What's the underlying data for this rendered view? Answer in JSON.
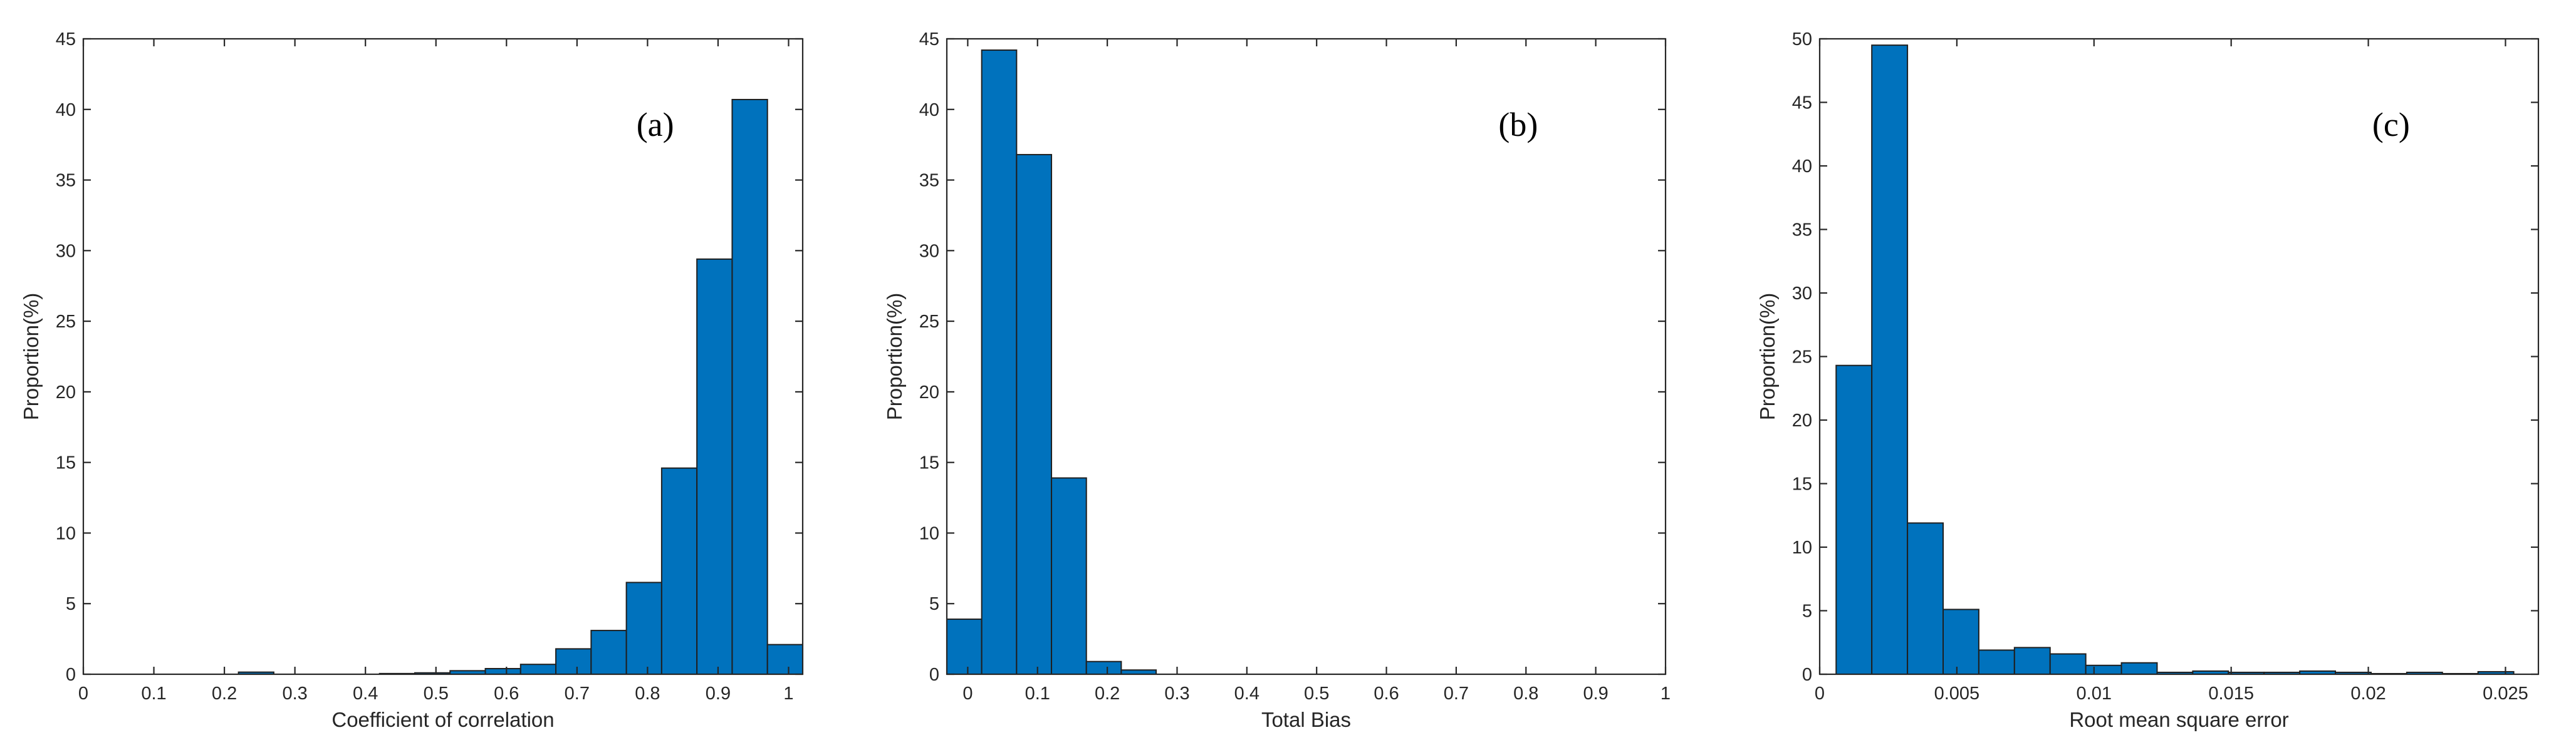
{
  "chart_data": [
    {
      "type": "bar",
      "panel_label": "(a)",
      "xlabel": "Coefficient of correlation",
      "ylabel": "Proportion(%)",
      "xlim": [
        0,
        1.02
      ],
      "ylim": [
        0,
        45
      ],
      "xticks": [
        0,
        0.1,
        0.2,
        0.3,
        0.4,
        0.5,
        0.6,
        0.7,
        0.8,
        0.9,
        1
      ],
      "xtick_labels": [
        "0",
        "0.1",
        "0.2",
        "0.3",
        "0.4",
        "0.5",
        "0.6",
        "0.7",
        "0.8",
        "0.9",
        "1"
      ],
      "yticks": [
        0,
        5,
        10,
        15,
        20,
        25,
        30,
        35,
        40,
        45
      ],
      "ytick_labels": [
        "0",
        "5",
        "10",
        "15",
        "20",
        "25",
        "30",
        "35",
        "40",
        "45"
      ],
      "bin_edges": [
        0.22,
        0.27,
        0.32,
        0.37,
        0.42,
        0.47,
        0.52,
        0.57,
        0.62,
        0.67,
        0.72,
        0.77,
        0.82,
        0.87,
        0.92,
        0.97,
        1.02
      ],
      "values": [
        0.15,
        0,
        0,
        0,
        0.05,
        0.1,
        0.25,
        0.4,
        0.7,
        1.8,
        3.1,
        6.5,
        14.6,
        29.4,
        40.7,
        2.1
      ],
      "bar_color": "#0072BD",
      "grid": false
    },
    {
      "type": "bar",
      "panel_label": "(b)",
      "xlabel": "Total Bias",
      "ylabel": "Proportion(%)",
      "xlim": [
        -0.03,
        1
      ],
      "ylim": [
        0,
        45
      ],
      "xticks": [
        0,
        0.1,
        0.2,
        0.3,
        0.4,
        0.5,
        0.6,
        0.7,
        0.8,
        0.9,
        1
      ],
      "xtick_labels": [
        "0",
        "0.1",
        "0.2",
        "0.3",
        "0.4",
        "0.5",
        "0.6",
        "0.7",
        "0.8",
        "0.9",
        "1"
      ],
      "yticks": [
        0,
        5,
        10,
        15,
        20,
        25,
        30,
        35,
        40,
        45
      ],
      "ytick_labels": [
        "0",
        "5",
        "10",
        "15",
        "20",
        "25",
        "30",
        "35",
        "40",
        "45"
      ],
      "bin_edges": [
        -0.03,
        0.02,
        0.07,
        0.12,
        0.17,
        0.22,
        0.27
      ],
      "values": [
        3.9,
        44.2,
        36.8,
        13.9,
        0.9,
        0.3
      ],
      "bar_color": "#0072BD",
      "grid": false
    },
    {
      "type": "bar",
      "panel_label": "(c)",
      "xlabel": "Root mean square error",
      "ylabel": "Proportion(%)",
      "xlim": [
        0,
        0.0262
      ],
      "ylim": [
        0,
        50
      ],
      "xticks": [
        0,
        0.005,
        0.01,
        0.015,
        0.02,
        0.025
      ],
      "xtick_labels": [
        "0",
        "0.005",
        "0.01",
        "0.015",
        "0.02",
        "0.025"
      ],
      "yticks": [
        0,
        5,
        10,
        15,
        20,
        25,
        30,
        35,
        40,
        45,
        50
      ],
      "ytick_labels": [
        "0",
        "5",
        "10",
        "15",
        "20",
        "25",
        "30",
        "35",
        "40",
        "45",
        "50"
      ],
      "bin_edges": [
        0.0006,
        0.0019,
        0.0032,
        0.0045,
        0.0058,
        0.0071,
        0.0084,
        0.0097,
        0.011,
        0.0123,
        0.0136,
        0.0149,
        0.0162,
        0.0175,
        0.0188,
        0.0201,
        0.0214,
        0.0227,
        0.024,
        0.0253
      ],
      "values": [
        24.3,
        49.5,
        11.9,
        5.1,
        1.9,
        2.1,
        1.6,
        0.7,
        0.9,
        0.15,
        0.25,
        0.15,
        0.15,
        0.25,
        0.15,
        0.05,
        0.15,
        0.05,
        0.2
      ],
      "bar_color": "#0072BD",
      "grid": false
    }
  ]
}
